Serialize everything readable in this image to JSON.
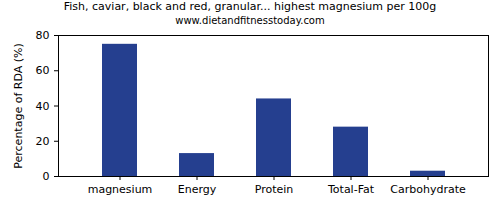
{
  "chart_data": {
    "type": "bar",
    "title": "Fish, caviar, black and red, granular... highest magnesium per 100g",
    "subtitle": "www.dietandfitnesstoday.com",
    "y_label": "Percentage of RDA (%)",
    "categories": [
      "magnesium",
      "Energy",
      "Protein",
      "Total-Fat",
      "Carbohydrate"
    ],
    "values": [
      75,
      13,
      44,
      28,
      3
    ],
    "color": "#253f8f",
    "ylim": [
      0,
      80
    ],
    "yticks": [
      0,
      20,
      40,
      60,
      80
    ],
    "grid": false
  }
}
